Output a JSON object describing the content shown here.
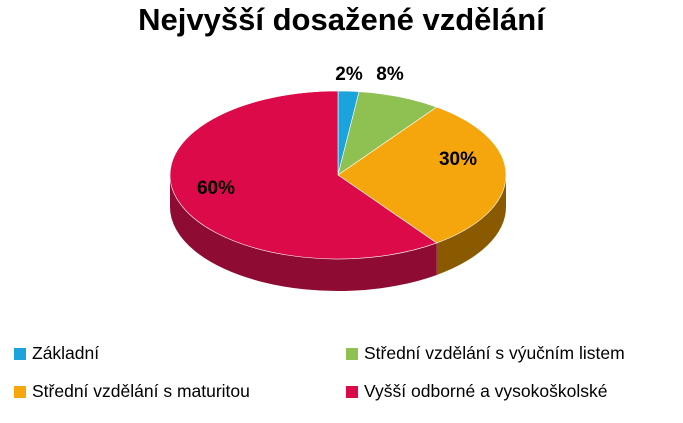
{
  "chart_data": {
    "type": "pie",
    "title": "Nejvyšší dosažené vzdělání",
    "categories": [
      "Základní",
      "Střední vzdělání s výučním listem",
      "Střední vzdělání s maturitou",
      "Vyšší odborné a vysokoškolské"
    ],
    "values": [
      2,
      8,
      30,
      60
    ],
    "data_labels": [
      "2%",
      "8%",
      "30%",
      "60%"
    ],
    "colors": [
      "#1aa3dc",
      "#8ec152",
      "#f5a60c",
      "#dc0a48"
    ],
    "side_colors": [
      "#0f6f98",
      "#5c8a31",
      "#8a5a00",
      "#8e0b33"
    ],
    "legend_position": "bottom"
  }
}
